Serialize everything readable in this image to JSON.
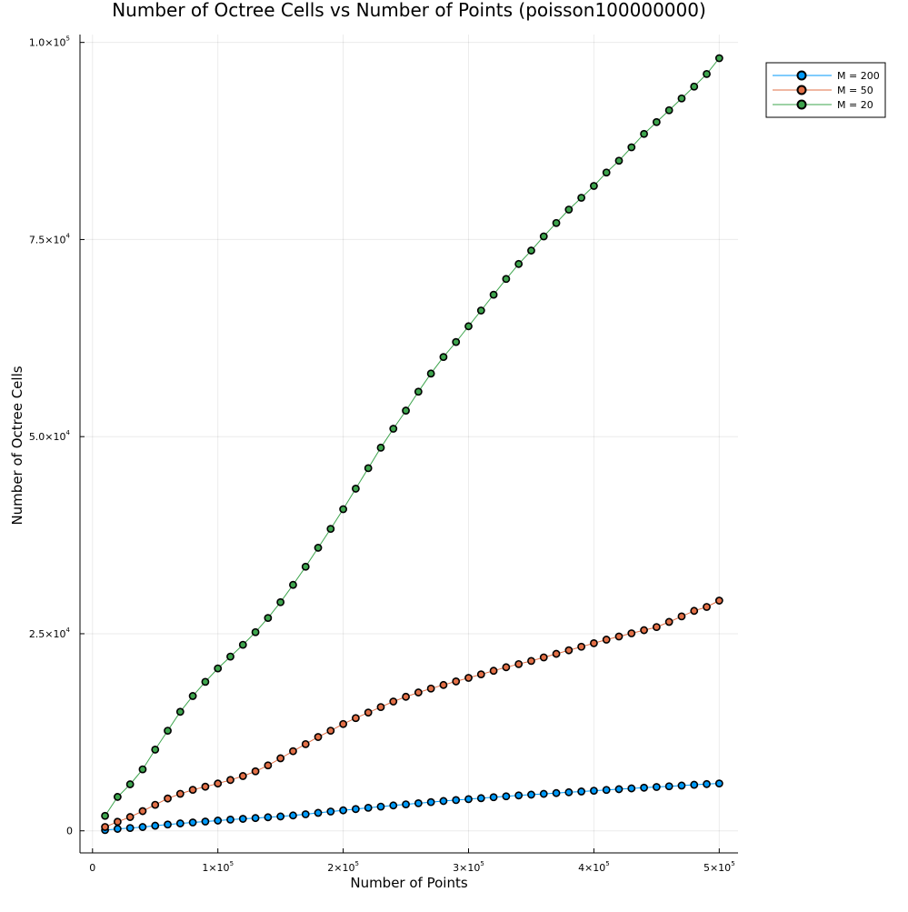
{
  "chart_data": {
    "type": "line",
    "title": "Number of Octree Cells vs Number of Points (poisson100000000)",
    "xlabel": "Number of Points",
    "ylabel": "Number of Octree Cells",
    "xlim": [
      -10000,
      515000
    ],
    "ylim": [
      -2800,
      101000
    ],
    "x_ticks": [
      {
        "value": 0,
        "label": "0",
        "exp": ""
      },
      {
        "value": 100000,
        "label": "1×10",
        "exp": "5"
      },
      {
        "value": 200000,
        "label": "2×10",
        "exp": "5"
      },
      {
        "value": 300000,
        "label": "3×10",
        "exp": "5"
      },
      {
        "value": 400000,
        "label": "4×10",
        "exp": "5"
      },
      {
        "value": 500000,
        "label": "5×10",
        "exp": "5"
      }
    ],
    "y_ticks": [
      {
        "value": 0,
        "label": "0",
        "exp": ""
      },
      {
        "value": 25000,
        "label": "2.5×10",
        "exp": "4"
      },
      {
        "value": 50000,
        "label": "5.0×10",
        "exp": "4"
      },
      {
        "value": 75000,
        "label": "7.5×10",
        "exp": "4"
      },
      {
        "value": 100000,
        "label": "1.0×10",
        "exp": "5"
      }
    ],
    "grid": true,
    "legend_position": "top-right",
    "x": [
      10000,
      20000,
      30000,
      40000,
      50000,
      60000,
      70000,
      80000,
      90000,
      100000,
      110000,
      120000,
      130000,
      140000,
      150000,
      160000,
      170000,
      180000,
      190000,
      200000,
      210000,
      220000,
      230000,
      240000,
      250000,
      260000,
      270000,
      280000,
      290000,
      300000,
      310000,
      320000,
      330000,
      340000,
      350000,
      360000,
      370000,
      380000,
      390000,
      400000,
      410000,
      420000,
      430000,
      440000,
      450000,
      460000,
      470000,
      480000,
      490000,
      500000
    ],
    "series": [
      {
        "name": "M = 200",
        "color": "#009af9",
        "values": [
          100,
          250,
          360,
          480,
          650,
          800,
          940,
          1060,
          1180,
          1300,
          1420,
          1520,
          1620,
          1720,
          1820,
          1950,
          2100,
          2280,
          2450,
          2600,
          2760,
          2920,
          3070,
          3220,
          3360,
          3500,
          3640,
          3780,
          3900,
          4020,
          4140,
          4260,
          4380,
          4490,
          4590,
          4690,
          4790,
          4890,
          4990,
          5090,
          5190,
          5280,
          5380,
          5470,
          5560,
          5650,
          5740,
          5840,
          5930,
          6010
        ]
      },
      {
        "name": "M = 50",
        "color": "#e26f46",
        "values": [
          490,
          1150,
          1750,
          2500,
          3300,
          4100,
          4700,
          5200,
          5600,
          6000,
          6450,
          6950,
          7550,
          8300,
          9200,
          10100,
          11000,
          11900,
          12700,
          13550,
          14300,
          15000,
          15700,
          16400,
          17000,
          17550,
          18050,
          18500,
          18950,
          19400,
          19850,
          20300,
          20750,
          21150,
          21550,
          22000,
          22450,
          22900,
          23350,
          23800,
          24250,
          24650,
          25050,
          25450,
          25850,
          26500,
          27200,
          27900,
          28400,
          29200
        ]
      },
      {
        "name": "M = 20",
        "color": "#3da44d",
        "values": [
          1900,
          4300,
          5900,
          7800,
          10300,
          12700,
          15100,
          17100,
          18900,
          20600,
          22100,
          23600,
          25200,
          27000,
          29000,
          31200,
          33500,
          35900,
          38300,
          40800,
          43400,
          46000,
          48600,
          51000,
          53300,
          55700,
          58000,
          60100,
          62000,
          64000,
          66000,
          68000,
          70000,
          71900,
          73600,
          75400,
          77100,
          78800,
          80300,
          81800,
          83500,
          85000,
          86700,
          88400,
          89900,
          91400,
          92900,
          94400,
          96000,
          98000
        ]
      }
    ]
  }
}
